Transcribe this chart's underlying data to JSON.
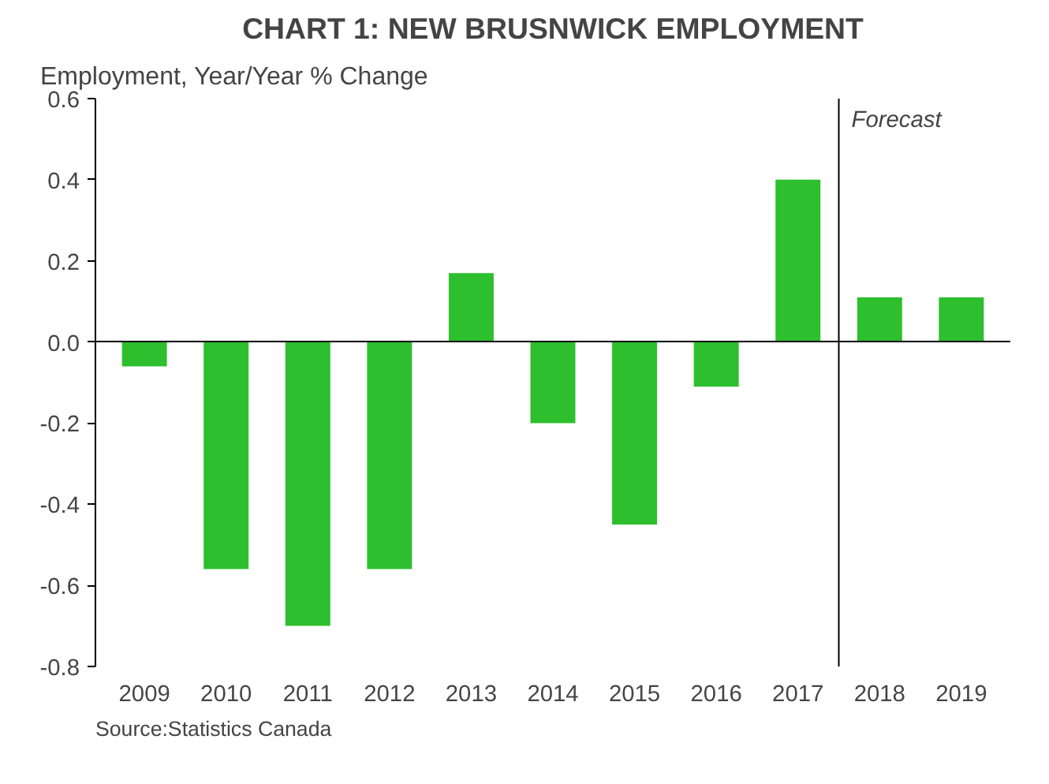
{
  "chart_data": {
    "type": "bar",
    "title": "CHART 1: NEW BRUSNWICK EMPLOYMENT",
    "ylabel": "Employment, Year/Year % Change",
    "categories": [
      "2009",
      "2010",
      "2011",
      "2012",
      "2013",
      "2014",
      "2015",
      "2016",
      "2017",
      "2018",
      "2019"
    ],
    "values": [
      -0.06,
      -0.56,
      -0.7,
      -0.56,
      0.17,
      -0.2,
      -0.45,
      -0.11,
      0.4,
      0.11,
      0.11
    ],
    "color": "#2dbf2d",
    "ylim": [
      -0.8,
      0.6
    ],
    "yticks": [
      {
        "value": -0.8,
        "label": "-0.8"
      },
      {
        "value": -0.6,
        "label": "-0.6"
      },
      {
        "value": -0.4,
        "label": "-0.4"
      },
      {
        "value": -0.2,
        "label": "-0.2"
      },
      {
        "value": 0,
        "label": "0.0"
      },
      {
        "value": 0.2,
        "label": "0.2"
      },
      {
        "value": 0.4,
        "label": "0.4"
      },
      {
        "value": 0.6,
        "label": "0.6"
      }
    ],
    "annotations": [
      "Forecast",
      "Source:Statistics Canada"
    ]
  }
}
